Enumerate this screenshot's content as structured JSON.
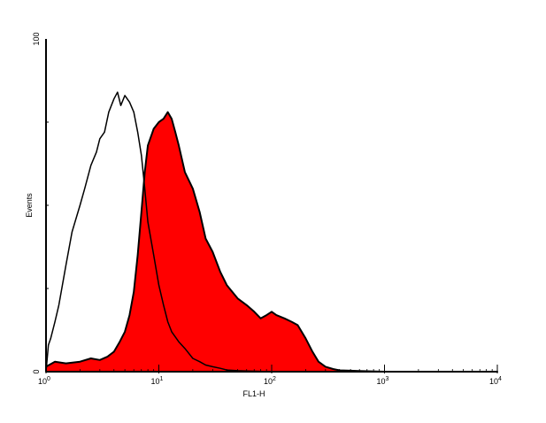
{
  "chart_data": {
    "type": "area",
    "x_scale": "log",
    "xlim": [
      1,
      10000
    ],
    "ylim": [
      0,
      100
    ],
    "xlabel": "FL1-H",
    "ylabel": "Events",
    "x_ticks": [
      {
        "value": 1,
        "base": "10",
        "exp": "0"
      },
      {
        "value": 10,
        "base": "10",
        "exp": "1"
      },
      {
        "value": 100,
        "base": "10",
        "exp": "2"
      },
      {
        "value": 1000,
        "base": "10",
        "exp": "3"
      },
      {
        "value": 10000,
        "base": "10",
        "exp": "4"
      }
    ],
    "y_ticks": [
      "0",
      "100"
    ],
    "grid": false,
    "series": [
      {
        "fill": "#ff0000",
        "stroke": "#000000",
        "filled": true,
        "x": [
          1,
          1.2,
          1.5,
          2,
          2.5,
          3,
          3.5,
          4,
          4.5,
          5,
          5.5,
          6,
          6.5,
          7,
          7.5,
          8,
          9,
          10,
          11,
          12,
          13,
          14,
          15,
          17,
          20,
          23,
          26,
          30,
          35,
          40,
          50,
          60,
          70,
          80,
          90,
          100,
          110,
          130,
          150,
          170,
          200,
          230,
          260,
          300,
          350,
          400,
          500,
          600,
          1000,
          10000
        ],
        "y": [
          1.5,
          3,
          2.5,
          3,
          4,
          3.5,
          4.5,
          6,
          9,
          12,
          17,
          24,
          35,
          48,
          60,
          68,
          73,
          75,
          76,
          78,
          76,
          72,
          68,
          60,
          55,
          48,
          40,
          36,
          30,
          26,
          22,
          20,
          18,
          16,
          17,
          18,
          17,
          16,
          15,
          14,
          10,
          6,
          3,
          1.5,
          0.8,
          0.4,
          0.3,
          0.2,
          0,
          0
        ]
      },
      {
        "fill": "none",
        "stroke": "#000000",
        "filled": false,
        "x": [
          1,
          1.05,
          1.1,
          1.2,
          1.3,
          1.5,
          1.7,
          2,
          2.2,
          2.5,
          2.8,
          3,
          3.3,
          3.6,
          4,
          4.3,
          4.6,
          5,
          5.5,
          6,
          6.5,
          7,
          7.5,
          8,
          9,
          10,
          11,
          12,
          13,
          15,
          17,
          20,
          23,
          26,
          30,
          35,
          40,
          50,
          60,
          100,
          10000
        ],
        "y": [
          0,
          8,
          10,
          15,
          20,
          32,
          42,
          50,
          55,
          62,
          66,
          70,
          72,
          78,
          82,
          84,
          80,
          83,
          81,
          78,
          72,
          65,
          55,
          45,
          35,
          26,
          20,
          15,
          12,
          9,
          7,
          4,
          3,
          2,
          1.5,
          1,
          0.5,
          0.3,
          0.2,
          0,
          0
        ]
      }
    ]
  }
}
